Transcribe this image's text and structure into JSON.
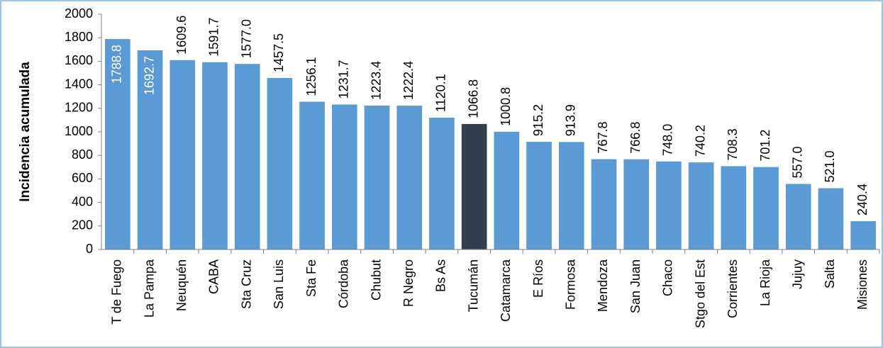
{
  "chart_data": {
    "type": "bar",
    "y_label": "Incidencia acumulada",
    "categories": [
      "T de Fuego",
      "La Pampa",
      "Neuquén",
      "CABA",
      "Sta Cruz",
      "San Luis",
      "Sta Fe",
      "Córdoba",
      "Chubut",
      "R Negro",
      "Bs As",
      "Tucumán",
      "Catamarca",
      "E Ríos",
      "Formosa",
      "Mendoza",
      "San Juan",
      "Chaco",
      "Stgo del Est",
      "Corrientes",
      "La Rioja",
      "Jujuy",
      "Salta",
      "Misiones"
    ],
    "values": [
      1788.8,
      1692.7,
      1609.6,
      1591.7,
      1577.0,
      1457.5,
      1256.1,
      1231.7,
      1223.4,
      1222.4,
      1120.1,
      1066.8,
      1000.8,
      915.2,
      913.9,
      767.8,
      766.8,
      748.0,
      740.2,
      708.3,
      701.2,
      557.0,
      521.0,
      240.4
    ],
    "value_labels": [
      "1788.8",
      "1692.7",
      "1609.6",
      "1591.7",
      "1577.0",
      "1457.5",
      "1256.1",
      "1231.7",
      "1223.4",
      "1222.4",
      "1120.1",
      "1066.8",
      "1000.8",
      "915.2",
      "913.9",
      "767.8",
      "766.8",
      "748.0",
      "740.2",
      "708.3",
      "701.2",
      "557.0",
      "521.0",
      "240.4"
    ],
    "colors": [
      "#5b9bd5",
      "#5b9bd5",
      "#5b9bd5",
      "#5b9bd5",
      "#5b9bd5",
      "#5b9bd5",
      "#5b9bd5",
      "#5b9bd5",
      "#5b9bd5",
      "#5b9bd5",
      "#5b9bd5",
      "#333f50",
      "#5b9bd5",
      "#5b9bd5",
      "#5b9bd5",
      "#5b9bd5",
      "#5b9bd5",
      "#5b9bd5",
      "#5b9bd5",
      "#5b9bd5",
      "#5b9bd5",
      "#5b9bd5",
      "#5b9bd5",
      "#5b9bd5"
    ],
    "ylim": [
      0,
      2000
    ],
    "yticks": [
      0,
      200,
      400,
      600,
      800,
      1000,
      1200,
      1400,
      1600,
      1800,
      2000
    ],
    "grid": false
  }
}
